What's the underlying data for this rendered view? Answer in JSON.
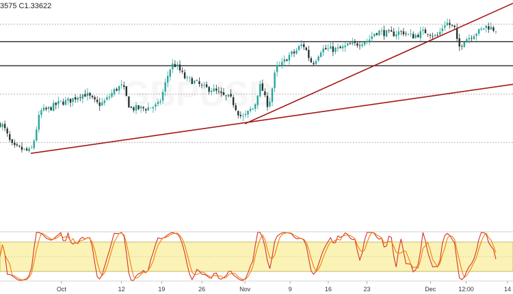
{
  "header": {
    "ohlc_text": "3575  C1.33622"
  },
  "watermark": {
    "symbol": "GBPUSD"
  },
  "chart_data": [
    {
      "type": "candlestick",
      "price_range": [
        1.244,
        1.342
      ],
      "horizontal_lines": [
        {
          "price": 1.3335,
          "style": "dotted"
        },
        {
          "price": 1.3255,
          "style": "solid"
        },
        {
          "price": 1.3145,
          "style": "solid"
        },
        {
          "price": 1.3015,
          "style": "dotted"
        },
        {
          "price": 1.2795,
          "style": "dotted"
        }
      ],
      "trendlines": [
        {
          "from": {
            "t": 0.062,
            "p": 1.2745
          },
          "to": {
            "t": 1.0,
            "p": 1.306
          }
        },
        {
          "from": {
            "t": 0.494,
            "p": 1.288
          },
          "to": {
            "t": 1.0,
            "p": 1.343
          }
        }
      ],
      "anchors": [
        [
          0.0,
          1.288
        ],
        [
          0.03,
          1.277
        ],
        [
          0.06,
          1.2755
        ],
        [
          0.085,
          1.294
        ],
        [
          0.13,
          1.298
        ],
        [
          0.17,
          1.3015
        ],
        [
          0.2,
          1.297
        ],
        [
          0.245,
          1.305
        ],
        [
          0.265,
          1.295
        ],
        [
          0.29,
          1.295
        ],
        [
          0.315,
          1.296
        ],
        [
          0.35,
          1.315
        ],
        [
          0.38,
          1.308
        ],
        [
          0.42,
          1.304
        ],
        [
          0.46,
          1.3
        ],
        [
          0.49,
          1.291
        ],
        [
          0.51,
          1.295
        ],
        [
          0.525,
          1.305
        ],
        [
          0.54,
          1.297
        ],
        [
          0.56,
          1.314
        ],
        [
          0.59,
          1.32
        ],
        [
          0.61,
          1.324
        ],
        [
          0.63,
          1.316
        ],
        [
          0.65,
          1.322
        ],
        [
          0.68,
          1.322
        ],
        [
          0.71,
          1.324
        ],
        [
          0.74,
          1.326
        ],
        [
          0.76,
          1.33
        ],
        [
          0.79,
          1.329
        ],
        [
          0.81,
          1.33
        ],
        [
          0.83,
          1.328
        ],
        [
          0.86,
          1.33
        ],
        [
          0.88,
          1.328
        ],
        [
          0.9,
          1.334
        ],
        [
          0.915,
          1.332
        ],
        [
          0.925,
          1.323
        ],
        [
          0.94,
          1.327
        ],
        [
          0.965,
          1.33
        ],
        [
          0.98,
          1.3325
        ],
        [
          1.0,
          1.331
        ]
      ],
      "x_ticks": [
        "Oct",
        "12",
        "19",
        "26",
        "Nov",
        "9",
        "16",
        "23",
        "Dec",
        "12:00",
        "14"
      ]
    },
    {
      "type": "line",
      "name_hint": "oscillator",
      "range": [
        0,
        100
      ],
      "band": [
        20,
        80
      ],
      "series": [
        {
          "color": "#d32f2f"
        },
        {
          "color": "#f57c00"
        }
      ]
    }
  ],
  "colors": {
    "up": "#26a69a",
    "down": "#26332f",
    "trendline": "#a31515",
    "band_fill": "#fbf3b6",
    "band_border": "#b7a85a"
  }
}
